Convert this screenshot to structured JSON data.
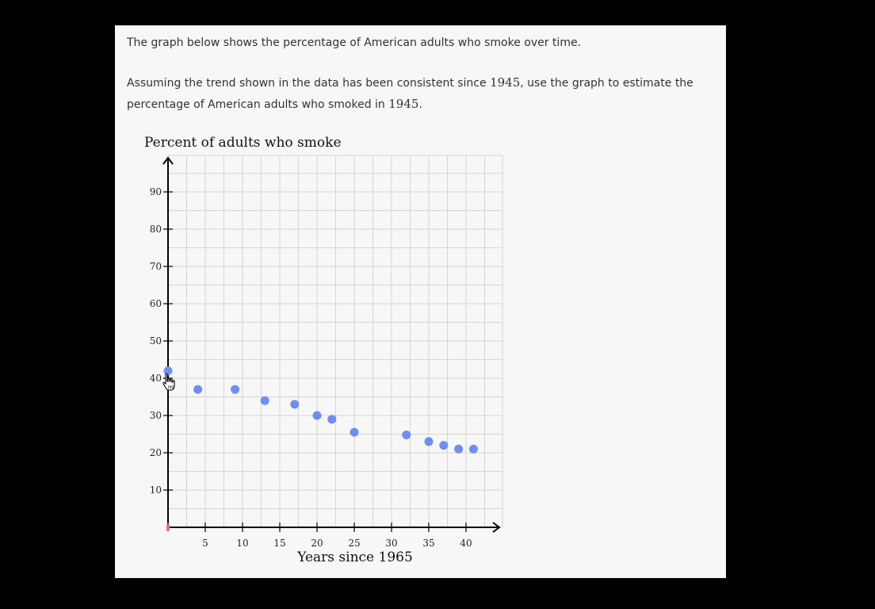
{
  "prompt": {
    "line1": "The graph below shows the percentage of American adults who smoke over time.",
    "line2_before": "Assuming the trend shown in the data has been consistent since ",
    "line2_year1": "1945",
    "line2_after": ", use the graph to estimate the percentage of American adults who smoked in ",
    "line2_year2": "1945",
    "line2_end": "."
  },
  "chart_data": {
    "type": "scatter",
    "title": "Percent of adults who smoke",
    "xlabel": "Years since 1965",
    "ylabel": "",
    "xlim": [
      0,
      45
    ],
    "ylim": [
      0,
      100
    ],
    "grid": true,
    "x_ticks": [
      5,
      10,
      15,
      20,
      25,
      30,
      35,
      40
    ],
    "y_ticks": [
      10,
      20,
      30,
      40,
      50,
      60,
      70,
      80,
      90
    ],
    "point_color": "#6e8df5",
    "x": [
      0,
      4,
      9,
      13,
      17,
      20,
      22,
      25,
      32,
      35,
      37,
      39,
      41
    ],
    "y": [
      42,
      37,
      37,
      34,
      33,
      30,
      29,
      25.5,
      24.8,
      23,
      22,
      21,
      21
    ]
  },
  "icons": {
    "cursor": "hand-pointer-icon",
    "origin_marker": "origin-marker-icon"
  },
  "colors": {
    "card_bg": "#f6f7f6",
    "page_bg": "#000000",
    "origin_marker": "#f26b6b"
  }
}
